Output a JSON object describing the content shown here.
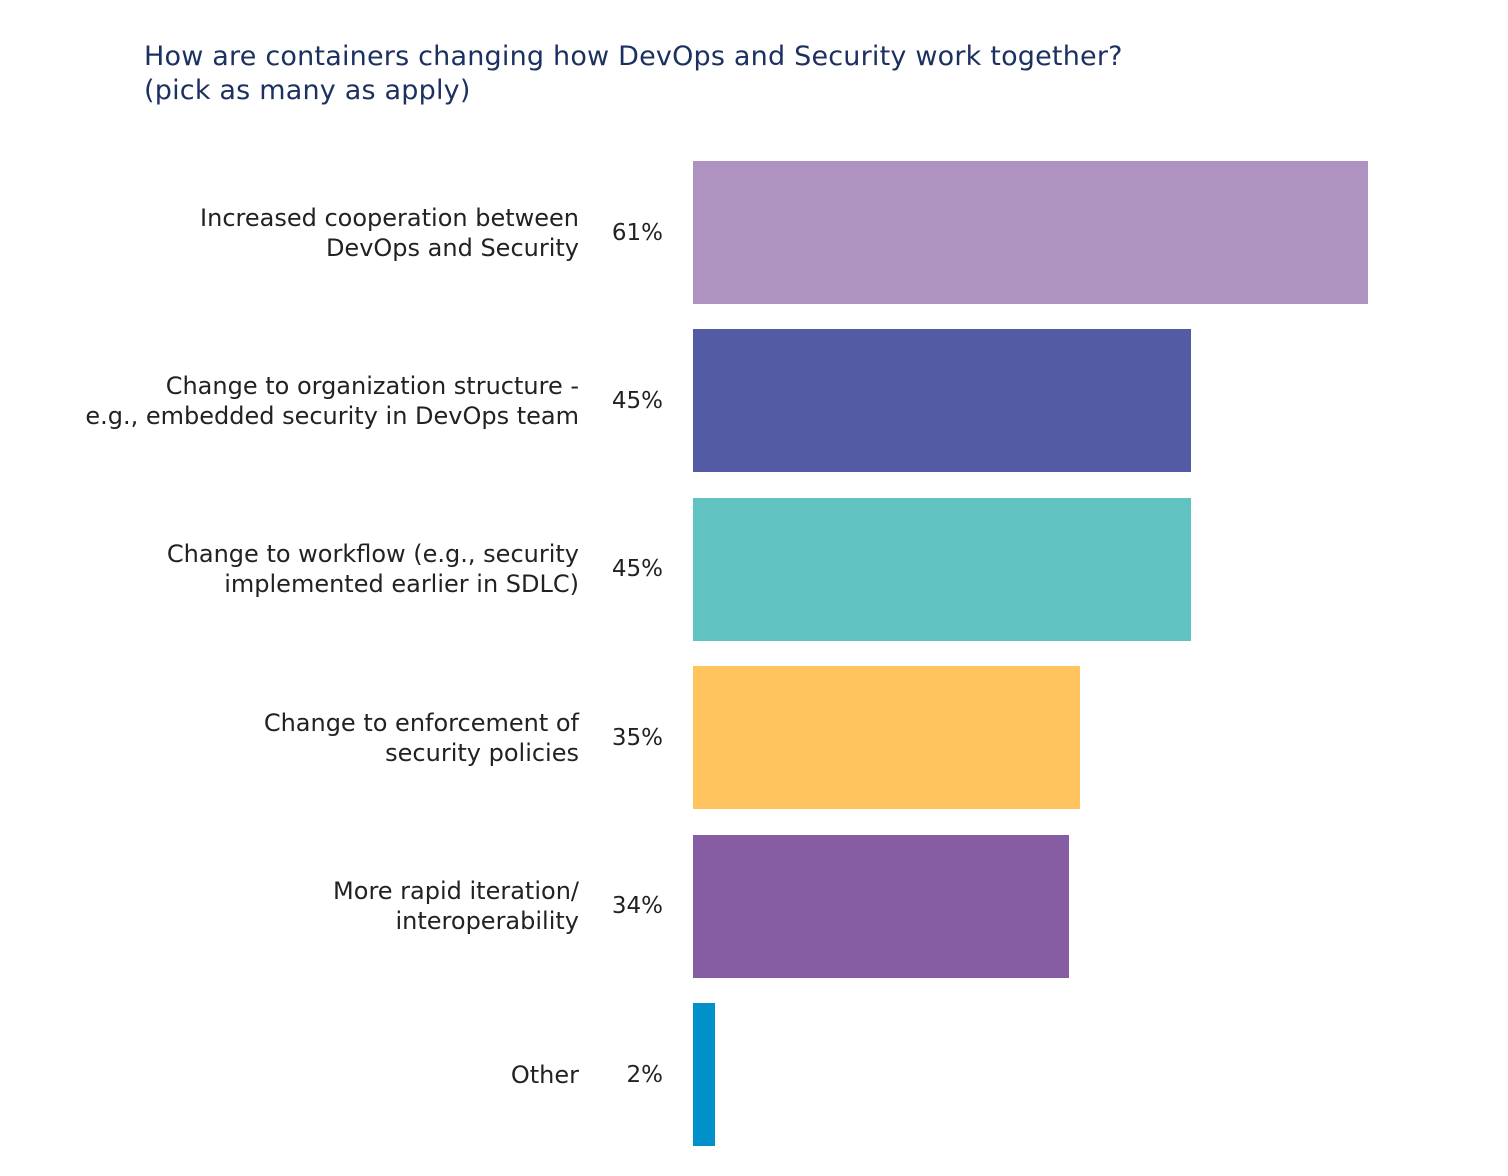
{
  "chart_data": {
    "type": "bar",
    "orientation": "horizontal",
    "title": "How are containers changing how DevOps and Security work together?",
    "subtitle": "(pick as many as apply)",
    "xlabel": "",
    "ylabel": "",
    "xlim": [
      0,
      61
    ],
    "grid": false,
    "categories": [
      "Increased cooperation between\nDevOps and Security",
      "Change to organization structure -\ne.g., embedded security in DevOps team",
      "Change to workflow (e.g., security\nimplemented earlier in SDLC)",
      "Change to enforcement of\nsecurity policies",
      "More rapid iteration/\ninteroperability",
      "Other"
    ],
    "values": [
      61,
      45,
      45,
      35,
      34,
      2
    ],
    "value_labels": [
      "61%",
      "45%",
      "45%",
      "35%",
      "34%",
      "2%"
    ],
    "colors": [
      "#ae92c0",
      "#535ba5",
      "#61c2c2",
      "#ffc45e",
      "#865ca3",
      "#0091c9"
    ]
  }
}
